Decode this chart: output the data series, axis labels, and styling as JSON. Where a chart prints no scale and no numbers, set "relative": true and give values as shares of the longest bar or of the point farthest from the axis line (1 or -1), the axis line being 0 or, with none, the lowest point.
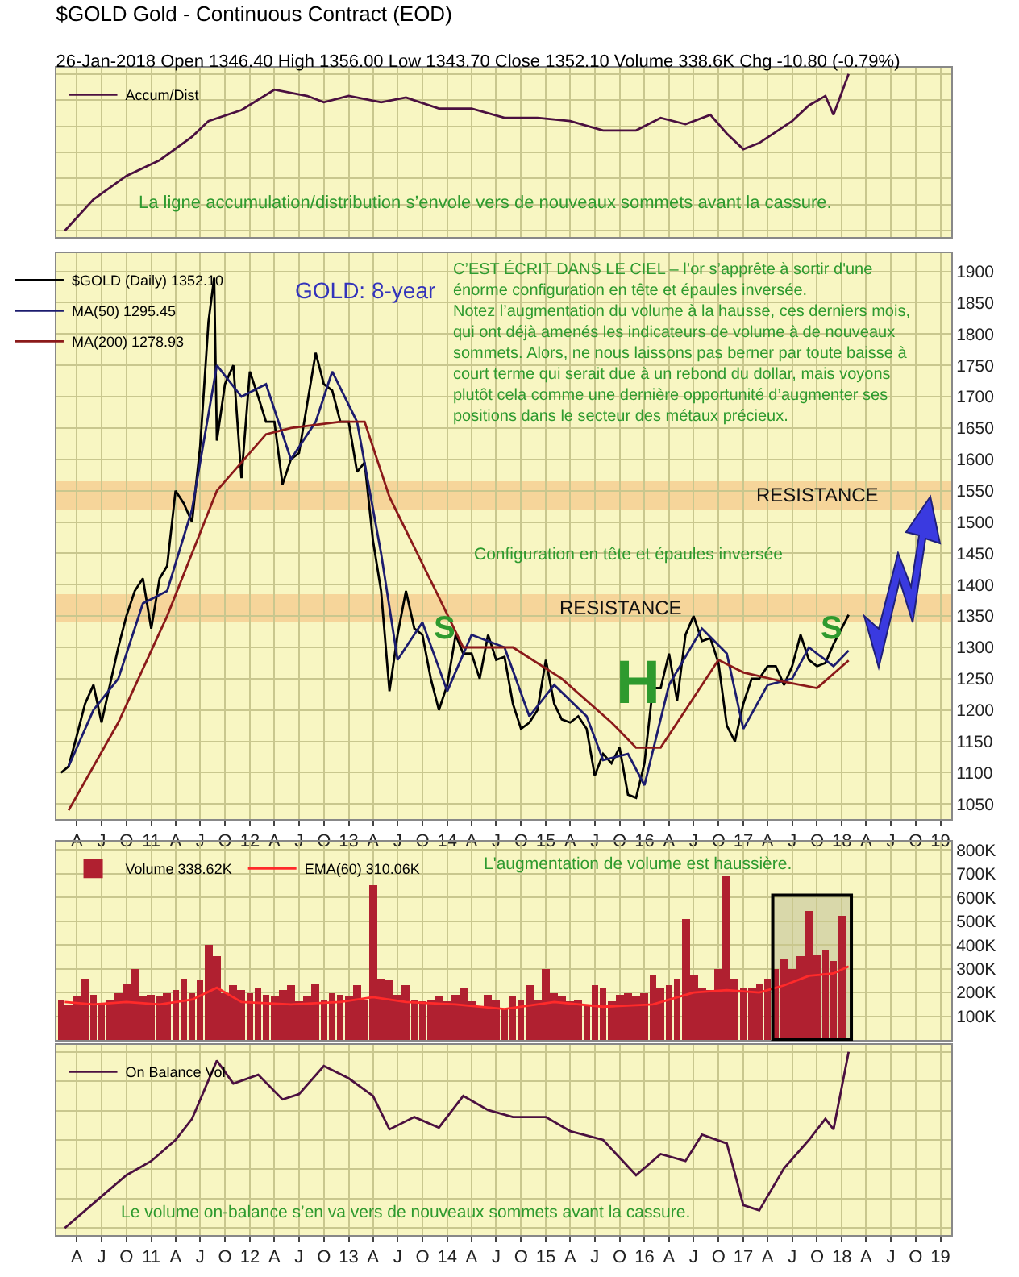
{
  "chart_data": [
    {
      "type": "line",
      "title": "$GOLD Gold - Continuous Contract (EOD)",
      "subtitle": "26-Jan-2018 Open 1346.40 High 1356.00 Low 1343.70 Close 1352.10 Volume 338.6K Chg -10.80 (-0.79%)",
      "relative": true,
      "legend": "top left",
      "grid": true,
      "tick_labels": false,
      "xlim": [
        "2010-01-15",
        "2019-02-10"
      ],
      "xticks": [
        {
          "value": "2010-04",
          "label": null
        },
        {
          "value": "2010-07",
          "label": null
        },
        {
          "value": "2010-10",
          "label": null
        },
        {
          "value": "2011-01",
          "label": null
        },
        {
          "value": "2011-04",
          "label": null
        },
        {
          "value": "2011-07",
          "label": null
        },
        {
          "value": "2011-10",
          "label": null
        },
        {
          "value": "2012-01",
          "label": null
        },
        {
          "value": "2012-04",
          "label": null
        },
        {
          "value": "2012-07",
          "label": null
        },
        {
          "value": "2012-10",
          "label": null
        },
        {
          "value": "2013-01",
          "label": null
        },
        {
          "value": "2013-04",
          "label": null
        },
        {
          "value": "2013-07",
          "label": null
        },
        {
          "value": "2013-10",
          "label": null
        },
        {
          "value": "2014-01",
          "label": null
        },
        {
          "value": "2014-04",
          "label": null
        },
        {
          "value": "2014-07",
          "label": null
        },
        {
          "value": "2014-10",
          "label": null
        },
        {
          "value": "2015-01",
          "label": null
        },
        {
          "value": "2015-04",
          "label": null
        },
        {
          "value": "2015-07",
          "label": null
        },
        {
          "value": "2015-10",
          "label": null
        },
        {
          "value": "2016-01",
          "label": null
        },
        {
          "value": "2016-04",
          "label": null
        },
        {
          "value": "2016-07",
          "label": null
        },
        {
          "value": "2016-10",
          "label": null
        },
        {
          "value": "2017-01",
          "label": null
        },
        {
          "value": "2017-04",
          "label": null
        },
        {
          "value": "2017-07",
          "label": null
        },
        {
          "value": "2017-10",
          "label": null
        },
        {
          "value": "2018-01",
          "label": null
        },
        {
          "value": "2018-04",
          "label": null
        },
        {
          "value": "2018-07",
          "label": null
        },
        {
          "value": "2018-10",
          "label": null
        },
        {
          "value": "2019-01",
          "label": null
        }
      ],
      "series": [
        {
          "name": "Accum/Dist",
          "color": "#4b1040",
          "x": [
            "2010-02-15",
            "2010-06",
            "2010-10",
            "2011-02",
            "2011-06",
            "2011-08",
            "2011-12",
            "2012-04",
            "2012-08",
            "2012-10",
            "2013-01",
            "2013-05",
            "2013-08",
            "2013-12",
            "2014-04",
            "2014-08",
            "2014-12",
            "2015-04",
            "2015-08",
            "2015-12",
            "2016-03",
            "2016-06",
            "2016-09",
            "2016-11",
            "2017-01",
            "2017-03",
            "2017-07",
            "2017-09",
            "2017-11",
            "2017-12",
            "2018-01-26"
          ],
          "values": [
            0,
            0.2,
            0.35,
            0.45,
            0.6,
            0.7,
            0.77,
            0.9,
            0.86,
            0.82,
            0.86,
            0.82,
            0.85,
            0.78,
            0.78,
            0.72,
            0.72,
            0.7,
            0.64,
            0.64,
            0.72,
            0.68,
            0.74,
            0.62,
            0.52,
            0.56,
            0.7,
            0.8,
            0.86,
            0.74,
            1.0
          ]
        }
      ],
      "annotations": [
        "La ligne accumulation/distribution s’envole vers de nouveaux sommets avant la cassure."
      ]
    },
    {
      "type": "line",
      "legend": "top left",
      "grid": true,
      "xlim": [
        "2010-01-15",
        "2019-02-10"
      ],
      "xticks": [
        {
          "value": "2010-04",
          "label": "A"
        },
        {
          "value": "2010-07",
          "label": "J"
        },
        {
          "value": "2010-10",
          "label": "O"
        },
        {
          "value": "2011-01",
          "label": "11"
        },
        {
          "value": "2011-04",
          "label": "A"
        },
        {
          "value": "2011-07",
          "label": "J"
        },
        {
          "value": "2011-10",
          "label": "O"
        },
        {
          "value": "2012-01",
          "label": "12"
        },
        {
          "value": "2012-04",
          "label": "A"
        },
        {
          "value": "2012-07",
          "label": "J"
        },
        {
          "value": "2012-10",
          "label": "O"
        },
        {
          "value": "2013-01",
          "label": "13"
        },
        {
          "value": "2013-04",
          "label": "A"
        },
        {
          "value": "2013-07",
          "label": "J"
        },
        {
          "value": "2013-10",
          "label": "O"
        },
        {
          "value": "2014-01",
          "label": "14"
        },
        {
          "value": "2014-04",
          "label": "A"
        },
        {
          "value": "2014-07",
          "label": "J"
        },
        {
          "value": "2014-10",
          "label": "O"
        },
        {
          "value": "2015-01",
          "label": "15"
        },
        {
          "value": "2015-04",
          "label": "A"
        },
        {
          "value": "2015-07",
          "label": "J"
        },
        {
          "value": "2015-10",
          "label": "O"
        },
        {
          "value": "2016-01",
          "label": "16"
        },
        {
          "value": "2016-04",
          "label": "A"
        },
        {
          "value": "2016-07",
          "label": "J"
        },
        {
          "value": "2016-10",
          "label": "O"
        },
        {
          "value": "2017-01",
          "label": "17"
        },
        {
          "value": "2017-04",
          "label": "A"
        },
        {
          "value": "2017-07",
          "label": "J"
        },
        {
          "value": "2017-10",
          "label": "O"
        },
        {
          "value": "2018-01",
          "label": "18"
        },
        {
          "value": "2018-04",
          "label": "A"
        },
        {
          "value": "2018-07",
          "label": "J"
        },
        {
          "value": "2018-10",
          "label": "O"
        },
        {
          "value": "2019-01",
          "label": "19"
        }
      ],
      "ylim": [
        1026,
        1929
      ],
      "yticks": [
        1050,
        1100,
        1150,
        1200,
        1250,
        1300,
        1350,
        1400,
        1450,
        1500,
        1550,
        1600,
        1650,
        1700,
        1750,
        1800,
        1850,
        1900
      ],
      "series": [
        {
          "name": "$GOLD (Daily) 1352.10",
          "color": "#000000",
          "x": [
            "2010-02",
            "2010-03",
            "2010-04",
            "2010-05",
            "2010-06",
            "2010-07",
            "2010-08",
            "2010-09",
            "2010-10",
            "2010-11",
            "2010-12",
            "2011-01",
            "2011-02",
            "2011-03",
            "2011-04",
            "2011-05",
            "2011-06",
            "2011-07",
            "2011-08",
            "2011-08-22",
            "2011-09",
            "2011-10",
            "2011-11",
            "2011-12",
            "2012-01",
            "2012-02",
            "2012-03",
            "2012-04",
            "2012-05",
            "2012-06",
            "2012-07",
            "2012-08",
            "2012-09",
            "2012-10",
            "2012-11",
            "2012-12",
            "2013-01",
            "2013-02",
            "2013-03",
            "2013-04",
            "2013-05",
            "2013-06",
            "2013-07",
            "2013-08",
            "2013-09",
            "2013-10",
            "2013-11",
            "2013-12",
            "2014-01",
            "2014-02",
            "2014-03",
            "2014-04",
            "2014-05",
            "2014-06",
            "2014-07",
            "2014-08",
            "2014-09",
            "2014-10",
            "2014-11",
            "2014-12",
            "2015-01",
            "2015-02",
            "2015-03",
            "2015-04",
            "2015-05",
            "2015-06",
            "2015-07",
            "2015-08",
            "2015-09",
            "2015-10",
            "2015-11",
            "2015-12",
            "2016-01",
            "2016-02",
            "2016-03",
            "2016-04",
            "2016-05",
            "2016-06",
            "2016-07",
            "2016-08",
            "2016-09",
            "2016-10",
            "2016-11",
            "2016-12",
            "2017-01",
            "2017-02",
            "2017-03",
            "2017-04",
            "2017-05",
            "2017-06",
            "2017-07",
            "2017-08",
            "2017-09",
            "2017-10",
            "2017-11",
            "2017-12",
            "2018-01-26"
          ],
          "values": [
            1100,
            1110,
            1160,
            1210,
            1240,
            1180,
            1240,
            1300,
            1350,
            1390,
            1410,
            1330,
            1410,
            1430,
            1550,
            1530,
            1500,
            1620,
            1820,
            1890,
            1630,
            1720,
            1750,
            1570,
            1740,
            1700,
            1660,
            1660,
            1560,
            1600,
            1610,
            1690,
            1770,
            1720,
            1710,
            1660,
            1660,
            1580,
            1595,
            1470,
            1390,
            1230,
            1320,
            1390,
            1330,
            1320,
            1250,
            1200,
            1240,
            1320,
            1290,
            1290,
            1250,
            1320,
            1280,
            1285,
            1210,
            1170,
            1180,
            1200,
            1280,
            1210,
            1185,
            1180,
            1190,
            1170,
            1095,
            1130,
            1115,
            1140,
            1065,
            1060,
            1115,
            1235,
            1235,
            1290,
            1215,
            1320,
            1350,
            1310,
            1315,
            1275,
            1175,
            1150,
            1210,
            1250,
            1250,
            1270,
            1270,
            1240,
            1270,
            1320,
            1280,
            1270,
            1275,
            1305,
            1352
          ]
        },
        {
          "name": "MA(50) 1295.45",
          "color": "#1c1c6e",
          "x": [
            "2010-03",
            "2010-06",
            "2010-09",
            "2010-12",
            "2011-03",
            "2011-06",
            "2011-09",
            "2011-12",
            "2012-03",
            "2012-06",
            "2012-09",
            "2012-11",
            "2013-02",
            "2013-05",
            "2013-07",
            "2013-10",
            "2014-01",
            "2014-04",
            "2014-08",
            "2014-11",
            "2015-02",
            "2015-06",
            "2015-08",
            "2015-11",
            "2016-01",
            "2016-04",
            "2016-08",
            "2016-11",
            "2017-01",
            "2017-04",
            "2017-07",
            "2017-09",
            "2017-12",
            "2018-01-26"
          ],
          "values": [
            1110,
            1200,
            1250,
            1370,
            1390,
            1520,
            1750,
            1700,
            1720,
            1600,
            1660,
            1740,
            1660,
            1450,
            1280,
            1340,
            1230,
            1320,
            1300,
            1190,
            1240,
            1190,
            1120,
            1130,
            1080,
            1240,
            1330,
            1290,
            1170,
            1240,
            1250,
            1300,
            1270,
            1295
          ]
        },
        {
          "name": "MA(200) 1278.93",
          "color": "#8b1a1a",
          "x": [
            "2010-03",
            "2010-09",
            "2011-03",
            "2011-09",
            "2012-03",
            "2012-06",
            "2012-12",
            "2013-03",
            "2013-06",
            "2013-12",
            "2014-03",
            "2014-09",
            "2015-03",
            "2015-09",
            "2015-12",
            "2016-03",
            "2016-06",
            "2016-10",
            "2017-01",
            "2017-06",
            "2017-10",
            "2018-01-26"
          ],
          "values": [
            1040,
            1180,
            1350,
            1550,
            1640,
            1650,
            1660,
            1660,
            1540,
            1380,
            1300,
            1300,
            1250,
            1180,
            1140,
            1140,
            1200,
            1280,
            1260,
            1245,
            1235,
            1279
          ]
        }
      ],
      "bands": [
        {
          "axis": "y",
          "from": 1520,
          "to": 1565,
          "label": "RESISTANCE",
          "color": "#f5c98c"
        },
        {
          "axis": "y",
          "from": 1340,
          "to": 1385,
          "label": "RESISTANCE",
          "color": "#f5c98c"
        }
      ],
      "annotations": [
        "GOLD: 8-year",
        "C’EST ÉCRIT DANS LE CIEL – l’or s’apprête à sortir d'une\nénorme configuration en tête et épaules inversée.\nNotez l’augmentation du volume à la hausse, ces derniers mois,\nqui ont déjà amenés les indicateurs de volume à de nouveaux\nsommets. Alors, ne nous laissons pas berner par toute baisse à\ncourt terme qui serait due à un rebond du dollar, mais voyons\nplutôt cela comme une dernière opportunité d’augmenter ses\npositions dans le secteur des métaux précieux.",
        "Configuration en tête et épaules inversée",
        {
          "text": "S",
          "x": "2013-12-20",
          "y": 1330
        },
        "H",
        {
          "text": "S",
          "x": "2017-11-25",
          "y": 1330
        }
      ]
    },
    {
      "type": "bar",
      "legend": "top left",
      "grid": true,
      "tick_labels": "y",
      "xlim": [
        "2010-01-15",
        "2019-02-10"
      ],
      "xticks": [
        {
          "value": "2010-04",
          "label": null
        },
        {
          "value": "2010-07",
          "label": null
        },
        {
          "value": "2010-10",
          "label": null
        },
        {
          "value": "2011-01",
          "label": null
        },
        {
          "value": "2011-04",
          "label": null
        },
        {
          "value": "2011-07",
          "label": null
        },
        {
          "value": "2011-10",
          "label": null
        },
        {
          "value": "2012-01",
          "label": null
        },
        {
          "value": "2012-04",
          "label": null
        },
        {
          "value": "2012-07",
          "label": null
        },
        {
          "value": "2012-10",
          "label": null
        },
        {
          "value": "2013-01",
          "label": null
        },
        {
          "value": "2013-04",
          "label": null
        },
        {
          "value": "2013-07",
          "label": null
        },
        {
          "value": "2013-10",
          "label": null
        },
        {
          "value": "2014-01",
          "label": null
        },
        {
          "value": "2014-04",
          "label": null
        },
        {
          "value": "2014-07",
          "label": null
        },
        {
          "value": "2014-10",
          "label": null
        },
        {
          "value": "2015-01",
          "label": null
        },
        {
          "value": "2015-04",
          "label": null
        },
        {
          "value": "2015-07",
          "label": null
        },
        {
          "value": "2015-10",
          "label": null
        },
        {
          "value": "2016-01",
          "label": null
        },
        {
          "value": "2016-04",
          "label": null
        },
        {
          "value": "2016-07",
          "label": null
        },
        {
          "value": "2016-10",
          "label": null
        },
        {
          "value": "2017-01",
          "label": null
        },
        {
          "value": "2017-04",
          "label": null
        },
        {
          "value": "2017-07",
          "label": null
        },
        {
          "value": "2017-10",
          "label": null
        },
        {
          "value": "2018-01",
          "label": null
        },
        {
          "value": "2018-04",
          "label": null
        },
        {
          "value": "2018-07",
          "label": null
        },
        {
          "value": "2018-10",
          "label": null
        },
        {
          "value": "2019-01",
          "label": null
        }
      ],
      "ylim": [
        0,
        835000
      ],
      "yticks": [
        {
          "value": 100000,
          "label": "100K"
        },
        {
          "value": 200000,
          "label": "200K"
        },
        {
          "value": 300000,
          "label": "300K"
        },
        {
          "value": 400000,
          "label": "400K"
        },
        {
          "value": 500000,
          "label": "500K"
        },
        {
          "value": 600000,
          "label": "600K"
        },
        {
          "value": 700000,
          "label": "700K"
        },
        {
          "value": 800000,
          "label": "800K"
        }
      ],
      "series": [
        {
          "name": "Volume 338.62K",
          "color": "#b02030",
          "type": "bar",
          "x": [
            "2010-02",
            "2010-03",
            "2010-04",
            "2010-05",
            "2010-06",
            "2010-07",
            "2010-08",
            "2010-09",
            "2010-10",
            "2010-11",
            "2010-12",
            "2011-01",
            "2011-02",
            "2011-03",
            "2011-04",
            "2011-05",
            "2011-06",
            "2011-07",
            "2011-08",
            "2011-09",
            "2011-10",
            "2011-11",
            "2011-12",
            "2012-01",
            "2012-02",
            "2012-03",
            "2012-04",
            "2012-05",
            "2012-06",
            "2012-07",
            "2012-08",
            "2012-09",
            "2012-10",
            "2012-11",
            "2012-12",
            "2013-01",
            "2013-02",
            "2013-03",
            "2013-04",
            "2013-05",
            "2013-06",
            "2013-07",
            "2013-08",
            "2013-09",
            "2013-10",
            "2013-11",
            "2013-12",
            "2014-01",
            "2014-02",
            "2014-03",
            "2014-04",
            "2014-05",
            "2014-06",
            "2014-07",
            "2014-08",
            "2014-09",
            "2014-10",
            "2014-11",
            "2014-12",
            "2015-01",
            "2015-02",
            "2015-03",
            "2015-04",
            "2015-05",
            "2015-06",
            "2015-07",
            "2015-08",
            "2015-09",
            "2015-10",
            "2015-11",
            "2015-12",
            "2016-01",
            "2016-02",
            "2016-03",
            "2016-04",
            "2016-05",
            "2016-06",
            "2016-07",
            "2016-08",
            "2016-09",
            "2016-10",
            "2016-11",
            "2016-12",
            "2017-01",
            "2017-02",
            "2017-03",
            "2017-04",
            "2017-05",
            "2017-06",
            "2017-07",
            "2017-08",
            "2017-09",
            "2017-10",
            "2017-11",
            "2017-12",
            "2018-01"
          ],
          "values": [
            170000,
            150000,
            180000,
            260000,
            190000,
            150000,
            170000,
            200000,
            240000,
            300000,
            180000,
            190000,
            180000,
            200000,
            210000,
            260000,
            200000,
            250000,
            400000,
            350000,
            200000,
            230000,
            210000,
            200000,
            220000,
            190000,
            180000,
            210000,
            230000,
            160000,
            180000,
            240000,
            170000,
            200000,
            190000,
            180000,
            230000,
            170000,
            650000,
            260000,
            250000,
            190000,
            230000,
            170000,
            160000,
            170000,
            180000,
            160000,
            190000,
            220000,
            160000,
            140000,
            190000,
            170000,
            130000,
            180000,
            170000,
            230000,
            170000,
            300000,
            200000,
            180000,
            160000,
            170000,
            150000,
            230000,
            220000,
            160000,
            190000,
            200000,
            180000,
            200000,
            270000,
            220000,
            230000,
            260000,
            510000,
            270000,
            220000,
            210000,
            300000,
            690000,
            260000,
            220000,
            220000,
            240000,
            260000,
            300000,
            340000,
            300000,
            350000,
            540000,
            360000,
            380000,
            330000,
            520000
          ]
        },
        {
          "name": "EMA(60) 310.06K",
          "color": "#ff2a2a",
          "type": "line",
          "x": [
            "2010-02-15",
            "2010-06",
            "2010-10",
            "2011-02",
            "2011-06",
            "2011-09",
            "2011-12",
            "2012-06",
            "2012-12",
            "2013-04",
            "2013-08",
            "2014-02",
            "2014-08",
            "2015-02",
            "2015-08",
            "2016-02",
            "2016-07",
            "2016-11",
            "2017-03",
            "2017-06",
            "2017-09",
            "2017-12",
            "2018-01-26"
          ],
          "values": [
            160000,
            150000,
            160000,
            150000,
            170000,
            220000,
            160000,
            150000,
            160000,
            180000,
            160000,
            150000,
            130000,
            160000,
            140000,
            150000,
            200000,
            210000,
            200000,
            230000,
            270000,
            280000,
            310000
          ]
        }
      ],
      "bands": [
        {
          "axis": "x",
          "from": "2017-04-20",
          "to": "2018-02-05",
          "color": "#000000"
        }
      ],
      "annotations": [
        "L'augmentation de volume est haussière."
      ]
    },
    {
      "type": "line",
      "relative": true,
      "legend": "top left",
      "grid": true,
      "tick_labels": "x",
      "xlim": [
        "2010-01-15",
        "2019-02-10"
      ],
      "xticks": [
        {
          "value": "2010-04",
          "label": "A"
        },
        {
          "value": "2010-07",
          "label": "J"
        },
        {
          "value": "2010-10",
          "label": "O"
        },
        {
          "value": "2011-01",
          "label": "11"
        },
        {
          "value": "2011-04",
          "label": "A"
        },
        {
          "value": "2011-07",
          "label": "J"
        },
        {
          "value": "2011-10",
          "label": "O"
        },
        {
          "value": "2012-01",
          "label": "12"
        },
        {
          "value": "2012-04",
          "label": "A"
        },
        {
          "value": "2012-07",
          "label": "J"
        },
        {
          "value": "2012-10",
          "label": "O"
        },
        {
          "value": "2013-01",
          "label": "13"
        },
        {
          "value": "2013-04",
          "label": "A"
        },
        {
          "value": "2013-07",
          "label": "J"
        },
        {
          "value": "2013-10",
          "label": "O"
        },
        {
          "value": "2014-01",
          "label": "14"
        },
        {
          "value": "2014-04",
          "label": "A"
        },
        {
          "value": "2014-07",
          "label": "J"
        },
        {
          "value": "2014-10",
          "label": "O"
        },
        {
          "value": "2015-01",
          "label": "15"
        },
        {
          "value": "2015-04",
          "label": "A"
        },
        {
          "value": "2015-07",
          "label": "J"
        },
        {
          "value": "2015-10",
          "label": "O"
        },
        {
          "value": "2016-01",
          "label": "16"
        },
        {
          "value": "2016-04",
          "label": "A"
        },
        {
          "value": "2016-07",
          "label": "J"
        },
        {
          "value": "2016-10",
          "label": "O"
        },
        {
          "value": "2017-01",
          "label": "17"
        },
        {
          "value": "2017-04",
          "label": "A"
        },
        {
          "value": "2017-07",
          "label": "J"
        },
        {
          "value": "2017-10",
          "label": "O"
        },
        {
          "value": "2018-01",
          "label": "18"
        },
        {
          "value": "2018-04",
          "label": "A"
        },
        {
          "value": "2018-07",
          "label": "J"
        },
        {
          "value": "2018-10",
          "label": "O"
        },
        {
          "value": "2019-01",
          "label": "19"
        }
      ],
      "series": [
        {
          "name": "On Balance Vol",
          "color": "#4b1040",
          "x": [
            "2010-02-15",
            "2010-06",
            "2010-10",
            "2011-01",
            "2011-04",
            "2011-06",
            "2011-09",
            "2011-11",
            "2012-02",
            "2012-05",
            "2012-07",
            "2012-10",
            "2013-01",
            "2013-04",
            "2013-06",
            "2013-09",
            "2013-12",
            "2014-03",
            "2014-06",
            "2014-09",
            "2015-01",
            "2015-04",
            "2015-08",
            "2015-12",
            "2016-03",
            "2016-06",
            "2016-08",
            "2016-11",
            "2017-01",
            "2017-03",
            "2017-06",
            "2017-09",
            "2017-11",
            "2017-12",
            "2018-01-26"
          ],
          "values": [
            0,
            0.14,
            0.3,
            0.38,
            0.5,
            0.62,
            0.95,
            0.82,
            0.87,
            0.73,
            0.76,
            0.92,
            0.85,
            0.75,
            0.56,
            0.63,
            0.57,
            0.75,
            0.67,
            0.63,
            0.63,
            0.55,
            0.5,
            0.3,
            0.42,
            0.38,
            0.53,
            0.48,
            0.13,
            0.1,
            0.34,
            0.5,
            0.62,
            0.56,
            1.0
          ]
        }
      ],
      "annotations": [
        "Le volume on-balance s’en va vers de nouveaux sommets avant la cassure."
      ]
    }
  ]
}
